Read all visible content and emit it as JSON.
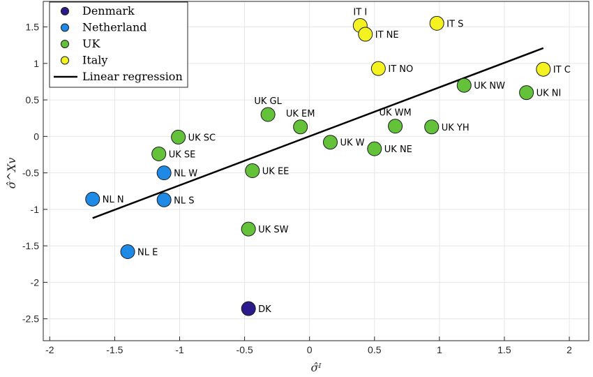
{
  "chart_data": {
    "type": "scatter",
    "xlabel": "σ̂ᴵ",
    "ylabel": "σ̂^Xv",
    "xlim": [
      -2.05,
      2.15
    ],
    "ylim": [
      -2.8,
      1.85
    ],
    "xticks": [
      -2,
      -1.5,
      -1,
      -0.5,
      0,
      0.5,
      1,
      1.5,
      2
    ],
    "yticks": [
      -2.5,
      -2,
      -1.5,
      -1,
      -0.5,
      0,
      0.5,
      1,
      1.5
    ],
    "xtick_labels": [
      "-2",
      "-1.5",
      "-1",
      "-0.5",
      "0",
      "0.5",
      "1",
      "1.5",
      "2"
    ],
    "ytick_labels": [
      "-2.5",
      "-2",
      "-1.5",
      "-1",
      "-0.5",
      "0",
      "0.5",
      "1",
      "1.5"
    ],
    "grid": true,
    "legend_position": "top-left",
    "series": [
      {
        "name": "Denmark",
        "color": "#2a1a8c",
        "points": [
          {
            "label": "DK",
            "x": -0.47,
            "y": -2.36
          }
        ]
      },
      {
        "name": "Netherland",
        "color": "#1e8ae6",
        "points": [
          {
            "label": "NL N",
            "x": -1.67,
            "y": -0.86
          },
          {
            "label": "NL W",
            "x": -1.12,
            "y": -0.5
          },
          {
            "label": "NL S",
            "x": -1.12,
            "y": -0.87
          },
          {
            "label": "NL E",
            "x": -1.4,
            "y": -1.58
          }
        ]
      },
      {
        "name": "UK",
        "color": "#63c23a",
        "points": [
          {
            "label": "UK SC",
            "x": -1.01,
            "y": -0.01
          },
          {
            "label": "UK SE",
            "x": -1.16,
            "y": -0.24
          },
          {
            "label": "UK GL",
            "x": -0.32,
            "y": 0.3
          },
          {
            "label": "UK EM",
            "x": -0.07,
            "y": 0.13
          },
          {
            "label": "UK EE",
            "x": -0.44,
            "y": -0.47
          },
          {
            "label": "UK SW",
            "x": -0.47,
            "y": -1.27
          },
          {
            "label": "UK W",
            "x": 0.16,
            "y": -0.08
          },
          {
            "label": "UK NE",
            "x": 0.5,
            "y": -0.17
          },
          {
            "label": "UK WM",
            "x": 0.66,
            "y": 0.14
          },
          {
            "label": "UK YH",
            "x": 0.94,
            "y": 0.13
          },
          {
            "label": "UK NW",
            "x": 1.19,
            "y": 0.7
          },
          {
            "label": "UK NI",
            "x": 1.67,
            "y": 0.6
          }
        ]
      },
      {
        "name": "Italy",
        "color": "#f5f222",
        "points": [
          {
            "label": "IT I",
            "x": 0.39,
            "y": 1.52
          },
          {
            "label": "IT NE",
            "x": 0.43,
            "y": 1.4
          },
          {
            "label": "IT S",
            "x": 0.98,
            "y": 1.55
          },
          {
            "label": "IT NO",
            "x": 0.53,
            "y": 0.93
          },
          {
            "label": "IT C",
            "x": 1.8,
            "y": 0.92
          }
        ]
      }
    ],
    "regression": {
      "name": "Linear regression",
      "color": "#000000",
      "x": [
        -1.67,
        1.8
      ],
      "y": [
        -1.12,
        1.21
      ]
    }
  }
}
